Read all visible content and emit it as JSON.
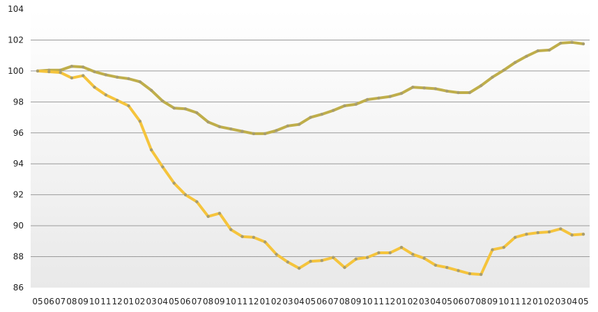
{
  "chart_data": {
    "type": "line",
    "title": "",
    "xlabel": "",
    "ylabel": "",
    "ylim": [
      86,
      104
    ],
    "yticks": [
      86,
      88,
      90,
      92,
      94,
      96,
      98,
      100,
      102,
      104
    ],
    "grid": "horizontal",
    "legend": "none",
    "categories": [
      "05",
      "06",
      "07",
      "08",
      "09",
      "10",
      "11",
      "12",
      "01",
      "02",
      "03",
      "04",
      "05",
      "06",
      "07",
      "08",
      "09",
      "10",
      "11",
      "12",
      "01",
      "02",
      "03",
      "04",
      "05",
      "06",
      "07",
      "08",
      "09",
      "10",
      "11",
      "12",
      "01",
      "02",
      "03",
      "04",
      "05",
      "06",
      "07",
      "08",
      "09",
      "10",
      "11",
      "12",
      "01",
      "02",
      "03",
      "04",
      "05"
    ],
    "series": [
      {
        "color": "#bfae4a",
        "values": [
          100.0,
          100.05,
          100.05,
          100.3,
          100.25,
          99.95,
          99.75,
          99.6,
          99.5,
          99.3,
          98.75,
          98.05,
          97.6,
          97.55,
          97.3,
          96.7,
          96.4,
          96.25,
          96.1,
          95.95,
          95.95,
          96.15,
          96.45,
          96.55,
          97.0,
          97.2,
          97.45,
          97.75,
          97.85,
          98.15,
          98.25,
          98.35,
          98.55,
          98.95,
          98.9,
          98.85,
          98.7,
          98.6,
          98.6,
          99.05,
          99.6,
          100.05,
          100.55,
          100.95,
          101.3,
          101.35,
          101.8,
          101.85,
          101.75
        ]
      },
      {
        "color": "#f5c43c",
        "values": [
          100.0,
          99.95,
          99.9,
          99.55,
          99.7,
          98.95,
          98.45,
          98.1,
          97.75,
          96.75,
          94.9,
          93.8,
          92.75,
          92.0,
          91.55,
          90.6,
          90.8,
          89.75,
          89.3,
          89.25,
          88.95,
          88.15,
          87.65,
          87.25,
          87.7,
          87.75,
          87.95,
          87.3,
          87.85,
          87.95,
          88.25,
          88.25,
          88.6,
          88.15,
          87.9,
          87.45,
          87.3,
          87.1,
          86.9,
          86.85,
          88.45,
          88.6,
          89.25,
          89.45,
          89.55,
          89.6,
          89.8,
          89.4,
          89.45
        ]
      }
    ]
  }
}
